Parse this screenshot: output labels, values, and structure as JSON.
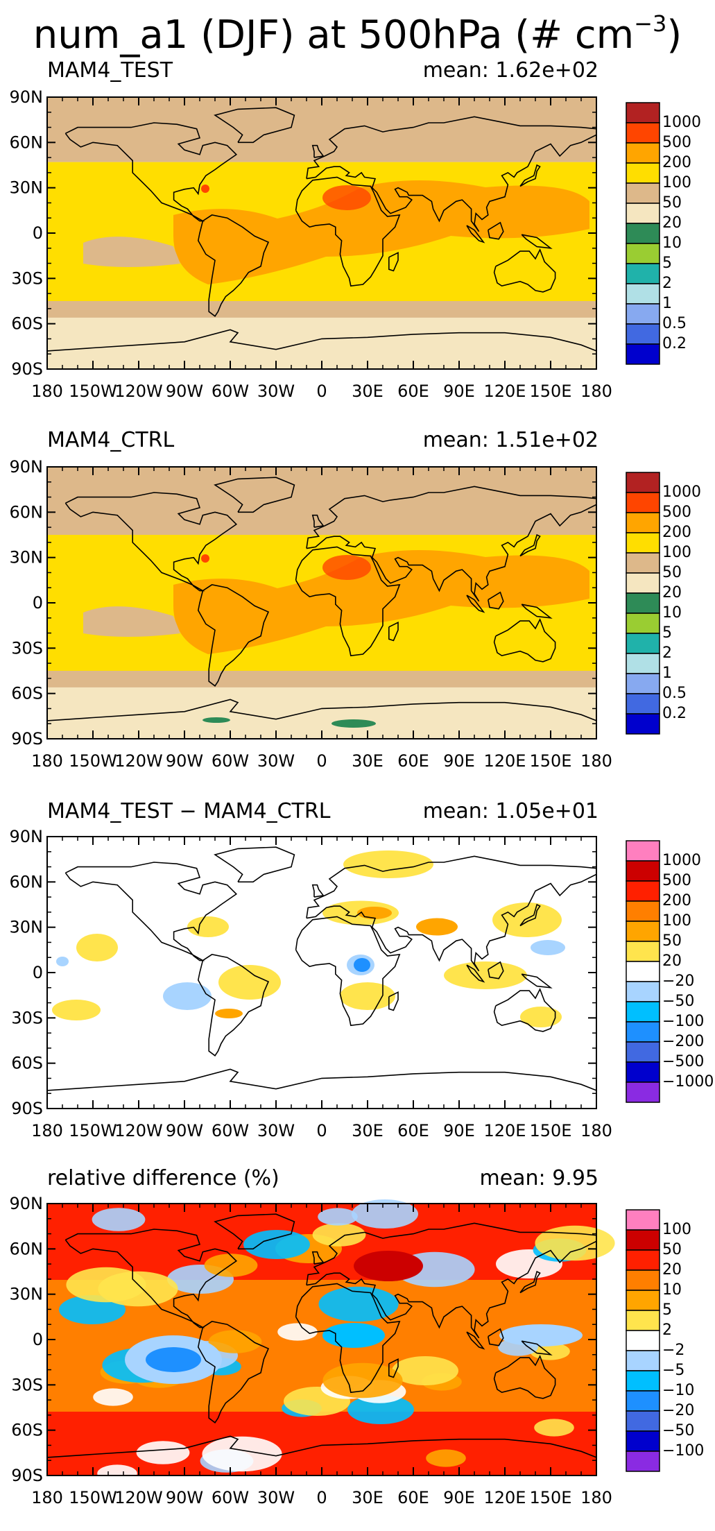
{
  "figure": {
    "title_main": "num_a1 (DJF) at 500hPa (# cm",
    "title_exp": "−3",
    "title_end": ")"
  },
  "axes": {
    "y_labels": [
      "90N",
      "60N",
      "30N",
      "0",
      "30S",
      "60S",
      "90S"
    ],
    "x_labels": [
      "180",
      "150W",
      "120W",
      "90W",
      "60W",
      "30W",
      "0",
      "30E",
      "60E",
      "90E",
      "120E",
      "150E",
      "180"
    ]
  },
  "colors": {
    "abs_scale": [
      "#0000cd",
      "#4169e1",
      "#87a9f0",
      "#b0e0e6",
      "#20b2aa",
      "#9acd32",
      "#2e8b57",
      "#f5e6c0",
      "#ddb88a",
      "#ffde00",
      "#ffa500",
      "#ff4500",
      "#b22222"
    ],
    "diff_scale": [
      "#8a2be2",
      "#0000cd",
      "#4169e1",
      "#1e90ff",
      "#00bfff",
      "#a8d4ff",
      "#ffffff",
      "#ffe44d",
      "#ffa500",
      "#ff7f00",
      "#ff2000",
      "#cc0000",
      "#ff7fbf"
    ]
  },
  "panels": [
    {
      "name": "MAM4_TEST",
      "mean_text": "mean: 1.62e+02",
      "scale": "abs",
      "colorbar_labels": [
        "1000",
        "500",
        "200",
        "100",
        "50",
        "20",
        "10",
        "5",
        "2",
        "1",
        "0.5",
        "0.2"
      ]
    },
    {
      "name": "MAM4_CTRL",
      "mean_text": "mean: 1.51e+02",
      "scale": "abs",
      "colorbar_labels": [
        "1000",
        "500",
        "200",
        "100",
        "50",
        "20",
        "10",
        "5",
        "2",
        "1",
        "0.5",
        "0.2"
      ]
    },
    {
      "name": "MAM4_TEST − MAM4_CTRL",
      "mean_text": "mean: 1.05e+01",
      "scale": "diff",
      "colorbar_labels": [
        "1000",
        "500",
        "200",
        "100",
        "50",
        "20",
        "−20",
        "−50",
        "−100",
        "−200",
        "−500",
        "−1000"
      ]
    },
    {
      "name": "relative difference (%)",
      "mean_text": "mean:  9.95",
      "scale": "diff",
      "colorbar_labels": [
        "100",
        "50",
        "20",
        "10",
        "5",
        "2",
        "−2",
        "−5",
        "−10",
        "−20",
        "−50",
        "−100"
      ]
    }
  ]
}
